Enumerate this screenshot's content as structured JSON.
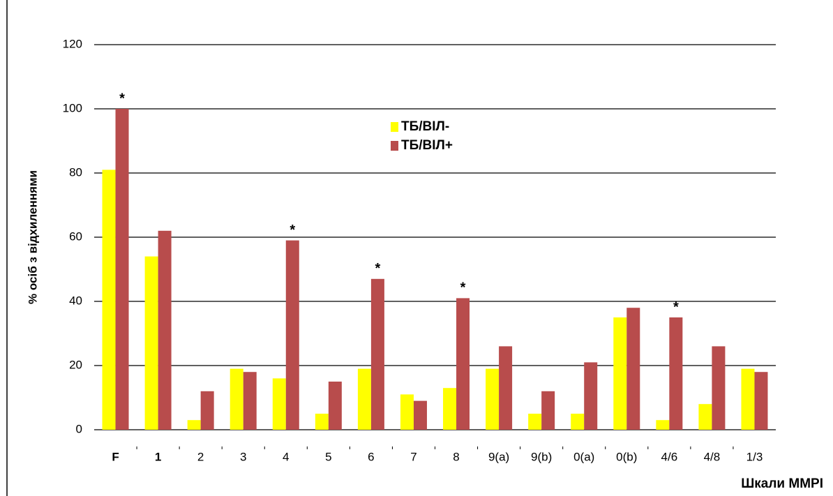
{
  "chart_data": {
    "type": "bar",
    "y_label": "% осіб з відхиленнями",
    "x_label": "Шкали MMPI",
    "categories": [
      "F",
      "1",
      "2",
      "3",
      "4",
      "5",
      "6",
      "7",
      "8",
      "9(a)",
      "9(b)",
      "0(a)",
      "0(b)",
      "4/6",
      "4/8",
      "1/3"
    ],
    "series": [
      {
        "name": "ТБ/ВІЛ-",
        "color": "#ffff00",
        "values": [
          81,
          54,
          3,
          19,
          16,
          5,
          19,
          11,
          13,
          19,
          5,
          5,
          35,
          3,
          8,
          19
        ]
      },
      {
        "name": "ТБ/ВІЛ+",
        "color": "#b84c4c",
        "values": [
          100,
          62,
          12,
          18,
          59,
          15,
          47,
          9,
          41,
          26,
          12,
          21,
          38,
          35,
          26,
          18
        ]
      }
    ],
    "annotations": [
      {
        "text": "*",
        "category": "F"
      },
      {
        "text": "*",
        "category": "4"
      },
      {
        "text": "*",
        "category": "6"
      },
      {
        "text": "*",
        "category": "8"
      },
      {
        "text": "*",
        "category": "4/6"
      }
    ],
    "ylim": [
      0,
      120
    ],
    "yticks": [
      0,
      20,
      40,
      60,
      80,
      100,
      120
    ],
    "grid": true
  }
}
